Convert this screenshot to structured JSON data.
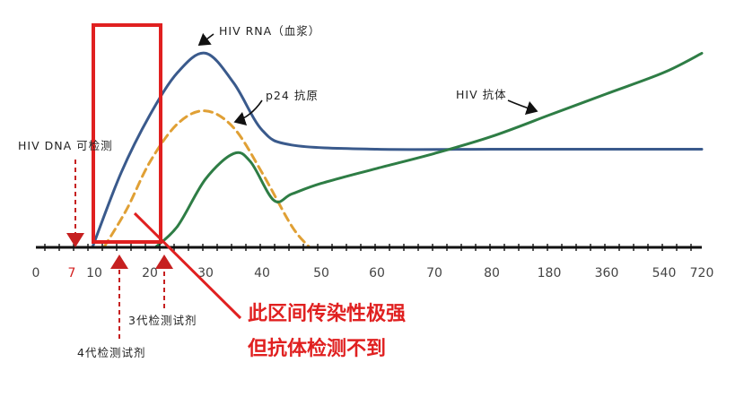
{
  "chart_data": {
    "type": "line",
    "x_ticks": [
      "0",
      "7",
      "10",
      "20",
      "30",
      "40",
      "50",
      "60",
      "70",
      "80",
      "180",
      "360",
      "540",
      "720"
    ],
    "highlight_tick": "7",
    "series": [
      {
        "name": "HIV RNA（血浆）",
        "color": "#3a5a8c",
        "points": [
          [
            10,
            0
          ],
          [
            15,
            0.35
          ],
          [
            20,
            0.62
          ],
          [
            25,
            0.82
          ],
          [
            30,
            0.91
          ],
          [
            35,
            0.77
          ],
          [
            40,
            0.55
          ],
          [
            45,
            0.48
          ],
          [
            60,
            0.46
          ],
          [
            80,
            0.46
          ],
          [
            180,
            0.46
          ],
          [
            360,
            0.46
          ],
          [
            540,
            0.46
          ],
          [
            720,
            0.46
          ]
        ]
      },
      {
        "name": "p24 抗原",
        "color": "#e0a035",
        "dashed": true,
        "points": [
          [
            12,
            0
          ],
          [
            16,
            0.18
          ],
          [
            20,
            0.4
          ],
          [
            25,
            0.58
          ],
          [
            30,
            0.64
          ],
          [
            35,
            0.56
          ],
          [
            40,
            0.35
          ],
          [
            45,
            0.1
          ],
          [
            48,
            0
          ]
        ]
      },
      {
        "name": "HIV 抗体",
        "color": "#2e7d45",
        "points": [
          [
            21,
            0
          ],
          [
            25,
            0.1
          ],
          [
            30,
            0.32
          ],
          [
            35,
            0.44
          ],
          [
            38,
            0.4
          ],
          [
            42,
            0.22
          ],
          [
            45,
            0.25
          ],
          [
            50,
            0.3
          ],
          [
            60,
            0.37
          ],
          [
            70,
            0.44
          ],
          [
            80,
            0.52
          ],
          [
            180,
            0.62
          ],
          [
            360,
            0.72
          ],
          [
            540,
            0.82
          ],
          [
            720,
            0.91
          ]
        ]
      }
    ],
    "annotations": {
      "rna_label": "HIV RNA（血浆）",
      "p24_label": "p24  抗原",
      "antibody_label": "HIV 抗体",
      "dna_label": "HIV DNA 可检测",
      "gen3_label": "3代检测试剂",
      "gen4_label": "4代检测试剂"
    },
    "note_line1": "此区间传染性极强",
    "note_line2": "但抗体检测不到",
    "window_color": "#e02020",
    "grid": false
  }
}
